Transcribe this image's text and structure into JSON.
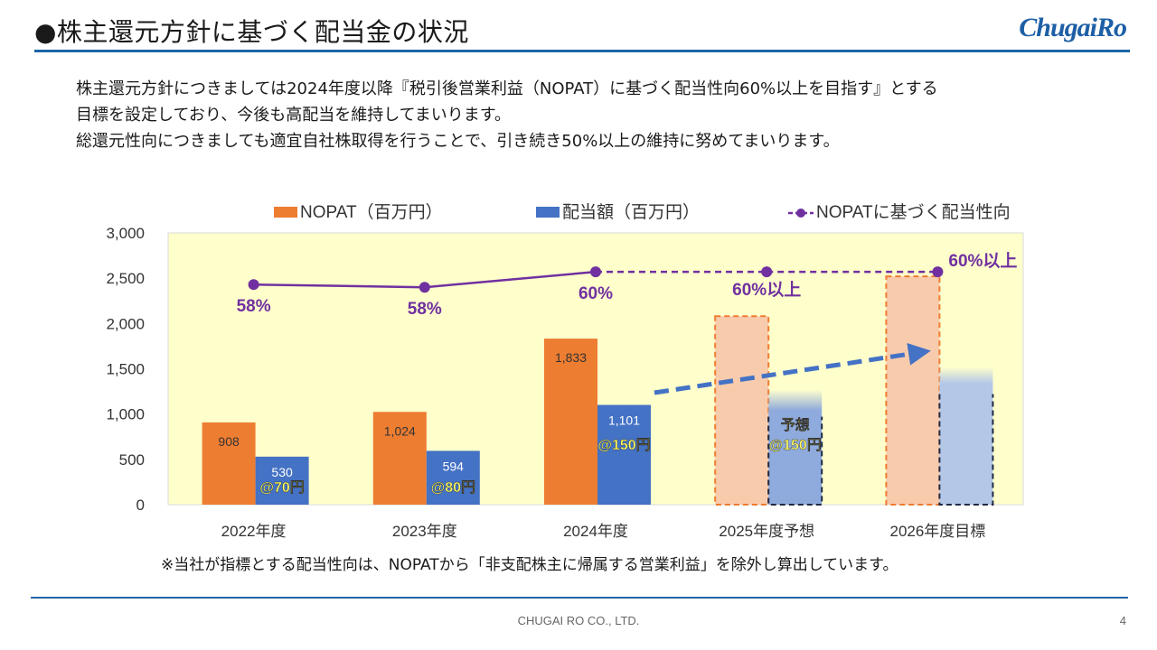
{
  "slide": {
    "title": "●株主還元方針に基づく配当金の状況",
    "logo": "ChugaiRo",
    "intro": [
      "株主還元方針につきましては2024年度以降『税引後営業利益（NOPAT）に基づく配当性向60%以上を目指す』とする",
      "目標を設定しており、今後も高配当を維持してまいります。",
      "総還元性向につきましても適宜自社株取得を行うことで、引き続き50%以上の維持に努めてまいります。"
    ],
    "note": "※当社が指標とする配当性向は、NOPATから「非支配株主に帰属する営業利益」を除外し算出しています。",
    "footer": "CHUGAI RO CO., LTD.",
    "page_number": "4"
  },
  "chart_data": {
    "type": "bar",
    "categories": [
      "2022年度",
      "2023年度",
      "2024年度",
      "2025年度予想",
      "2026年度目標"
    ],
    "ylim": [
      0,
      3000
    ],
    "yticks": [
      "0",
      "500",
      "1,000",
      "1,500",
      "2,000",
      "2,500",
      "3,000"
    ],
    "grid": false,
    "legend_position": "top",
    "series": [
      {
        "name": "NOPAT（百万円）",
        "kind": "bar",
        "color": "#ED7D31",
        "values": [
          908,
          1024,
          1833,
          2080,
          2520
        ],
        "value_labels": [
          "908",
          "1,024",
          "1,833",
          "",
          ""
        ],
        "estimated": [
          false,
          false,
          false,
          true,
          true
        ]
      },
      {
        "name": "配当額（百万円）",
        "kind": "bar",
        "color": "#4472C4",
        "values": [
          530,
          594,
          1101,
          1270,
          1520
        ],
        "value_labels": [
          "530",
          "594",
          "1,101",
          "",
          ""
        ],
        "estimated": [
          false,
          false,
          false,
          true,
          true
        ],
        "annotations": [
          "@70円",
          "@80円",
          "@150円",
          "予想\n@150円",
          ""
        ]
      },
      {
        "name": "NOPATに基づく配当性向",
        "kind": "line",
        "color": "#7030A0",
        "values": [
          2430,
          2400,
          2570,
          2570,
          2570
        ],
        "point_labels": [
          "58%",
          "58%",
          "60%",
          "60%以上",
          "60%以上"
        ],
        "dashed_from_index": 2
      }
    ],
    "background_color": "#FFFFCC",
    "trend_arrow_color": "#4472C4"
  }
}
